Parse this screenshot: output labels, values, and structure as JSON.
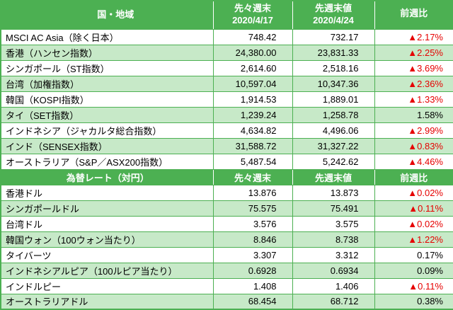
{
  "colors": {
    "header_bg": "#4cb052",
    "row_alt_bg": "#c7e9c8",
    "border": "#4cb052",
    "negative_text": "#e60000",
    "positive_text": "#000000"
  },
  "indices": {
    "header": {
      "region_label": "国・地域",
      "prev_label": "先々週末",
      "prev_date": "2020/4/17",
      "last_label": "先週末値",
      "last_date": "2020/4/24",
      "change_label": "前週比"
    },
    "rows": [
      {
        "label": "MSCI AC Asia（除く日本）",
        "prev": "748.42",
        "last": "732.17",
        "change": "▲2.17%"
      },
      {
        "label": "香港（ハンセン指数）",
        "prev": "24,380.00",
        "last": "23,831.33",
        "change": "▲2.25%"
      },
      {
        "label": "シンガポール（ST指数）",
        "prev": "2,614.60",
        "last": "2,518.16",
        "change": "▲3.69%"
      },
      {
        "label": "台湾（加権指数）",
        "prev": "10,597.04",
        "last": "10,347.36",
        "change": "▲2.36%"
      },
      {
        "label": "韓国（KOSPI指数）",
        "prev": "1,914.53",
        "last": "1,889.01",
        "change": "▲1.33%"
      },
      {
        "label": "タイ（SET指数）",
        "prev": "1,239.24",
        "last": "1,258.78",
        "change": "1.58%"
      },
      {
        "label": "インドネシア（ジャカルタ総合指数）",
        "prev": "4,634.82",
        "last": "4,496.06",
        "change": "▲2.99%"
      },
      {
        "label": "インド（SENSEX指数）",
        "prev": "31,588.72",
        "last": "31,327.22",
        "change": "▲0.83%"
      },
      {
        "label": "オーストラリア（S&P／ASX200指数）",
        "prev": "5,487.54",
        "last": "5,242.62",
        "change": "▲4.46%"
      }
    ]
  },
  "fx": {
    "header": {
      "title": "為替レート（対円）",
      "prev_label": "先々週末",
      "last_label": "先週末値",
      "change_label": "前週比"
    },
    "rows": [
      {
        "label": "香港ドル",
        "prev": "13.876",
        "last": "13.873",
        "change": "▲0.02%"
      },
      {
        "label": "シンガポールドル",
        "prev": "75.575",
        "last": "75.491",
        "change": "▲0.11%"
      },
      {
        "label": "台湾ドル",
        "prev": "3.576",
        "last": "3.575",
        "change": "▲0.02%"
      },
      {
        "label": "韓国ウォン（100ウォン当たり）",
        "prev": "8.846",
        "last": "8.738",
        "change": "▲1.22%"
      },
      {
        "label": "タイバーツ",
        "prev": "3.307",
        "last": "3.312",
        "change": "0.17%"
      },
      {
        "label": "インドネシアルピア（100ルピア当たり）",
        "prev": "0.6928",
        "last": "0.6934",
        "change": "0.09%"
      },
      {
        "label": "インドルピー",
        "prev": "1.408",
        "last": "1.406",
        "change": "▲0.11%"
      },
      {
        "label": "オーストラリアドル",
        "prev": "68.454",
        "last": "68.712",
        "change": "0.38%"
      }
    ]
  }
}
